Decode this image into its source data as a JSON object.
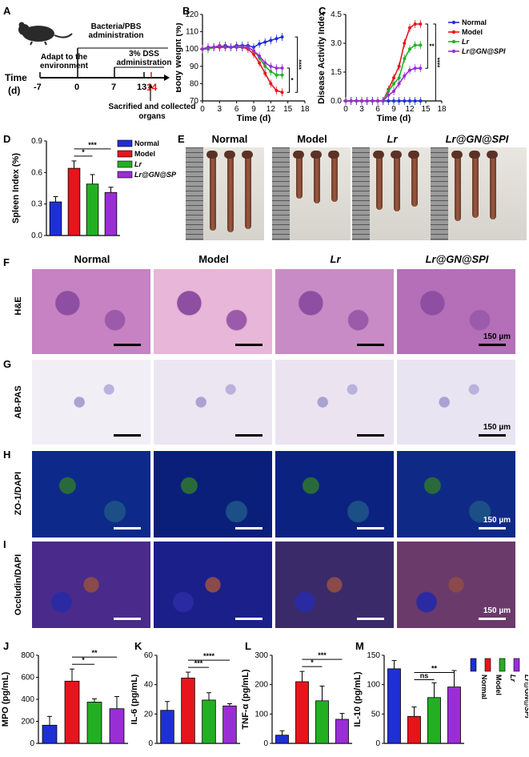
{
  "panels": {
    "A": "A",
    "B": "B",
    "C": "C",
    "D": "D",
    "E": "E",
    "F": "F",
    "G": "G",
    "H": "H",
    "I": "I",
    "J": "J",
    "K": "K",
    "L": "L",
    "M": "M"
  },
  "panelA": {
    "bacteria_text": "Bacteria/PBS administration",
    "adapt_text": "Adapt to the environment",
    "dss_text": "3% DSS administration",
    "time_label": "Time",
    "time_unit": "(d)",
    "ticks": [
      "-7",
      "0",
      "7",
      "13",
      "14"
    ],
    "sacrifice_text": "Sacrified and collected organs"
  },
  "legend_groups": [
    "Normal",
    "Model",
    "Lr",
    "Lr@GN@SPI"
  ],
  "colors": {
    "normal": "#1f2fd6",
    "model": "#e8141c",
    "lr": "#22b022",
    "spi": "#9a2ed6",
    "bar_gray": "#bbbbbb"
  },
  "panelE_titles": [
    "Normal",
    "Model",
    "Lr",
    "Lr@GN@SPI"
  ],
  "histo_titles": [
    "Normal",
    "Model",
    "Lr",
    "Lr@GN@SPI"
  ],
  "row_labels": {
    "F": "H&E",
    "G": "AB-PAS",
    "H": "ZO-1/DAPI",
    "I": "Occludin/DAPI"
  },
  "scale_text": "150 µm",
  "chart_data": [
    {
      "id": "B",
      "type": "line",
      "xlabel": "Time (d)",
      "ylabel": "Body Weight (%)",
      "xlim": [
        0,
        18
      ],
      "ylim": [
        70,
        120
      ],
      "xticks": [
        0,
        3,
        6,
        9,
        12,
        15,
        18
      ],
      "yticks": [
        70,
        80,
        90,
        100,
        110,
        120
      ],
      "x": [
        0,
        1,
        2,
        3,
        4,
        5,
        6,
        7,
        8,
        9,
        10,
        11,
        12,
        13,
        14
      ],
      "series": [
        {
          "name": "Normal",
          "values": [
            100,
            101,
            101,
            101,
            102,
            101,
            102,
            102,
            102,
            101,
            103,
            104,
            105,
            106,
            107
          ]
        },
        {
          "name": "Model",
          "values": [
            100,
            100,
            101,
            101,
            101,
            101,
            101,
            101,
            100,
            97,
            92,
            86,
            80,
            76,
            75
          ]
        },
        {
          "name": "Lr",
          "values": [
            100,
            100,
            101,
            102,
            101,
            101,
            101,
            101,
            101,
            99,
            95,
            90,
            87,
            85,
            85
          ]
        },
        {
          "name": "Lr@GN@SPI",
          "values": [
            100,
            101,
            101,
            102,
            101,
            101,
            101,
            101,
            101,
            99,
            96,
            92,
            90,
            89,
            89
          ]
        }
      ],
      "significance": [
        "*",
        "****"
      ]
    },
    {
      "id": "C",
      "type": "line",
      "xlabel": "Time (d)",
      "ylabel": "Disease Activity Index",
      "xlim": [
        0,
        18
      ],
      "ylim": [
        0,
        4.5
      ],
      "xticks": [
        0,
        3,
        6,
        9,
        12,
        15,
        18
      ],
      "yticks": [
        "0.0",
        "1.5",
        "3.0",
        "4.5"
      ],
      "x": [
        0,
        1,
        2,
        3,
        4,
        5,
        6,
        7,
        8,
        9,
        10,
        11,
        12,
        13,
        14
      ],
      "series": [
        {
          "name": "Normal",
          "values": [
            0,
            0,
            0,
            0,
            0,
            0,
            0,
            0,
            0,
            0,
            0,
            0,
            0,
            0,
            0
          ]
        },
        {
          "name": "Model",
          "values": [
            0,
            0,
            0,
            0,
            0,
            0,
            0,
            0,
            0.6,
            1.2,
            1.8,
            3.0,
            3.8,
            4.0,
            4.0
          ]
        },
        {
          "name": "Lr",
          "values": [
            0,
            0,
            0,
            0,
            0,
            0,
            0,
            0,
            0.5,
            0.9,
            1.2,
            2.2,
            2.7,
            2.9,
            2.9
          ]
        },
        {
          "name": "Lr@GN@SPI",
          "values": [
            0,
            0,
            0,
            0,
            0,
            0,
            0,
            0,
            0.3,
            0.5,
            0.9,
            1.3,
            1.6,
            1.7,
            1.7
          ]
        }
      ],
      "significance": [
        "**",
        "****"
      ]
    },
    {
      "id": "D",
      "type": "bar",
      "ylabel": "Spleen Index (%)",
      "ylim": [
        0,
        0.9
      ],
      "yticks": [
        "0.0",
        "0.3",
        "0.6",
        "0.9"
      ],
      "categories": [
        "Normal",
        "Model",
        "Lr",
        "Lr@GN@SPI"
      ],
      "values": [
        0.32,
        0.64,
        0.49,
        0.41
      ],
      "errors": [
        0.05,
        0.07,
        0.09,
        0.05
      ],
      "significance": [
        "*",
        "***"
      ]
    },
    {
      "id": "J",
      "type": "bar",
      "ylabel": "MPO (pg/mL)",
      "ylim": [
        0,
        800
      ],
      "yticks": [
        0,
        200,
        400,
        600,
        800
      ],
      "categories": [
        "Normal",
        "Model",
        "Lr",
        "Lr@GN@SPI"
      ],
      "values": [
        165,
        565,
        375,
        315
      ],
      "errors": [
        80,
        110,
        30,
        110
      ],
      "significance": [
        "*",
        "**"
      ]
    },
    {
      "id": "K",
      "type": "bar",
      "ylabel": "IL-6 (pg/mL)",
      "ylim": [
        0,
        60
      ],
      "yticks": [
        0,
        20,
        40,
        60
      ],
      "categories": [
        "Normal",
        "Model",
        "Lr",
        "Lr@GN@SPI"
      ],
      "values": [
        22.5,
        44.5,
        29.5,
        25.5
      ],
      "errors": [
        6,
        4,
        5,
        1.5
      ],
      "significance": [
        "***",
        "****"
      ]
    },
    {
      "id": "L",
      "type": "bar",
      "ylabel": "TNF-α (pg/mL)",
      "ylim": [
        0,
        300
      ],
      "yticks": [
        0,
        100,
        200,
        300
      ],
      "categories": [
        "Normal",
        "Model",
        "Lr",
        "Lr@GN@SPI"
      ],
      "values": [
        28,
        210,
        145,
        82
      ],
      "errors": [
        15,
        35,
        50,
        20
      ],
      "significance": [
        "*",
        "***"
      ]
    },
    {
      "id": "M",
      "type": "bar",
      "ylabel": "IL-10 (pg/mL)",
      "ylim": [
        0,
        150
      ],
      "yticks": [
        0,
        50,
        100,
        150
      ],
      "categories": [
        "Normal",
        "Model",
        "Lr",
        "Lr@GN@SPI"
      ],
      "values": [
        127,
        46,
        78,
        96
      ],
      "errors": [
        14,
        16,
        25,
        28
      ],
      "significance": [
        "ns",
        "**"
      ]
    }
  ]
}
